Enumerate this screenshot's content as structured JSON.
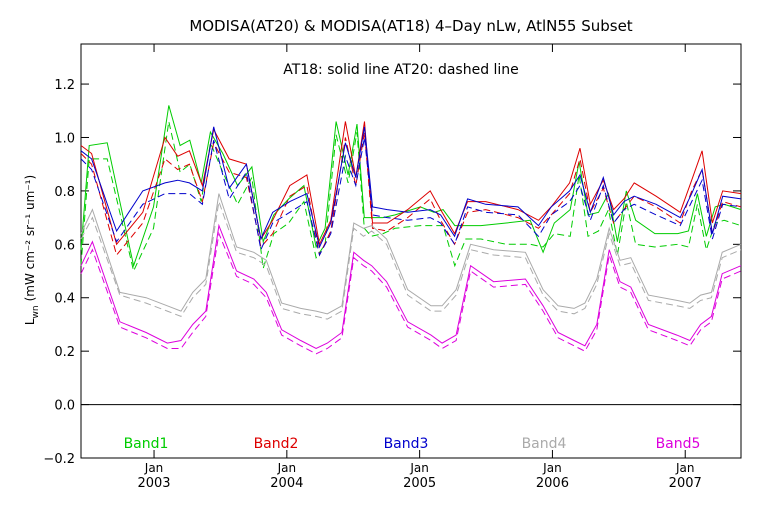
{
  "chart_data": {
    "type": "line",
    "title": "MODISA(AT20) & MODISA(AT18) 4–Day nLw, AtlN55 Subset",
    "annotation": "AT18: solid line    AT20: dashed line",
    "ylabel_main": "L",
    "ylabel_sub": "wn",
    "ylabel_unit": "(mW cm⁻² sr⁻¹ um⁻¹)",
    "ylim": [
      -0.2,
      1.35
    ],
    "xlim": [
      2002.45,
      2007.42
    ],
    "y_ticks": [
      -0.2,
      0.0,
      0.2,
      0.4,
      0.6,
      0.8,
      1.0,
      1.2
    ],
    "y_tick_labels": [
      "−0.2",
      "0.0",
      "0.2",
      "0.4",
      "0.6",
      "0.8",
      "1.0",
      "1.2"
    ],
    "x_ticks": [
      {
        "pos": 2003.0,
        "month": "Jan",
        "year": "2003"
      },
      {
        "pos": 2004.0,
        "month": "Jan",
        "year": "2004"
      },
      {
        "pos": 2005.0,
        "month": "Jan",
        "year": "2005"
      },
      {
        "pos": 2006.0,
        "month": "Jan",
        "year": "2006"
      },
      {
        "pos": 2007.0,
        "month": "Jan",
        "year": "2007"
      }
    ],
    "zero_line": 0.0,
    "x": [
      2002.45,
      2002.5,
      2002.6,
      2002.8,
      2002.93,
      2003.07,
      2003.14,
      2003.22,
      2003.28,
      2003.36,
      2003.42,
      2003.5,
      2003.6,
      2003.7,
      2003.79,
      2003.85,
      2003.93,
      2004.04,
      2004.14,
      2004.22,
      2004.28,
      2004.35,
      2004.44,
      2004.5,
      2004.56,
      2004.6,
      2004.65,
      2004.74,
      2004.82,
      2005.0,
      2005.1,
      2005.15,
      2005.24,
      2005.3,
      2005.39,
      2005.5,
      2005.7,
      2005.85,
      2005.93,
      2006.0,
      2006.12,
      2006.18,
      2006.24,
      2006.3,
      2006.38,
      2006.44,
      2006.5,
      2006.56,
      2006.62,
      2006.74,
      2006.92,
      2007.0,
      2007.06,
      2007.12,
      2007.18,
      2007.24,
      2007.3,
      2007.42
    ],
    "series": [
      {
        "name": "Band1",
        "color": "#00cc00",
        "solid": [
          0.58,
          0.97,
          0.98,
          0.52,
          0.74,
          1.12,
          0.97,
          0.99,
          0.83,
          1.02,
          0.94,
          0.82,
          0.89,
          0.61,
          0.71,
          0.77,
          0.82,
          0.59,
          0.66,
          1.06,
          0.86,
          1.05,
          0.7,
          0.7,
          0.7,
          0.71,
          0.74,
          0.72,
          0.73,
          0.67,
          0.67,
          0.67,
          0.68,
          0.69,
          0.57,
          0.68,
          0.73,
          0.91,
          0.71,
          0.72,
          0.79,
          0.61,
          0.8,
          0.69,
          0.64,
          0.64,
          0.65,
          0.79,
          0.63,
          0.74,
          0.75,
          0.73
        ],
        "dashed": [
          0.52,
          0.92,
          0.92,
          0.5,
          0.66,
          1.06,
          0.87,
          0.9,
          0.76,
          0.98,
          0.87,
          0.75,
          0.85,
          0.51,
          0.64,
          0.68,
          0.76,
          0.55,
          0.6,
          1.01,
          0.83,
          1.02,
          0.66,
          0.63,
          0.64,
          0.66,
          0.67,
          0.67,
          0.67,
          0.52,
          0.62,
          0.62,
          0.6,
          0.6,
          0.59,
          0.64,
          0.63,
          0.86,
          0.63,
          0.65,
          0.73,
          0.56,
          0.76,
          0.6,
          0.59,
          0.6,
          0.59,
          0.75,
          0.58,
          0.68,
          0.69,
          0.67
        ]
      },
      {
        "name": "Band2",
        "color": "#dd0000",
        "solid": [
          0.97,
          0.94,
          0.6,
          0.72,
          1.0,
          0.93,
          0.95,
          0.82,
          1.03,
          0.92,
          0.9,
          0.62,
          0.69,
          0.82,
          0.86,
          0.6,
          0.69,
          1.06,
          0.85,
          1.06,
          0.68,
          0.68,
          0.73,
          0.8,
          0.73,
          0.64,
          0.76,
          0.76,
          0.73,
          0.69,
          0.74,
          0.83,
          0.96,
          0.75,
          0.84,
          0.73,
          0.77,
          0.83,
          0.78,
          0.72,
          0.84,
          0.95,
          0.68,
          0.8,
          0.79
        ],
        "dashed": [
          0.94,
          0.9,
          0.56,
          0.68,
          0.92,
          0.88,
          0.9,
          0.76,
          0.98,
          0.87,
          0.85,
          0.59,
          0.64,
          0.78,
          0.82,
          0.56,
          0.65,
          1.0,
          0.82,
          1.02,
          0.66,
          0.65,
          0.7,
          0.77,
          0.69,
          0.6,
          0.72,
          0.73,
          0.7,
          0.66,
          0.71,
          0.79,
          0.92,
          0.72,
          0.81,
          0.68,
          0.73,
          0.78,
          0.74,
          0.68,
          0.8,
          0.88,
          0.64,
          0.76,
          0.74
        ]
      },
      {
        "name": "Band3",
        "color": "#0000cc",
        "solid": [
          0.95,
          0.92,
          0.65,
          0.8,
          0.83,
          0.84,
          0.83,
          0.8,
          1.04,
          0.81,
          0.9,
          0.62,
          0.72,
          0.76,
          0.79,
          0.59,
          0.68,
          0.98,
          0.85,
          1.04,
          0.74,
          0.73,
          0.72,
          0.73,
          0.71,
          0.63,
          0.77,
          0.75,
          0.74,
          0.67,
          0.74,
          0.8,
          0.86,
          0.72,
          0.85,
          0.71,
          0.76,
          0.78,
          0.75,
          0.7,
          0.79,
          0.88,
          0.64,
          0.78,
          0.77
        ],
        "dashed": [
          0.92,
          0.88,
          0.61,
          0.75,
          0.79,
          0.79,
          0.79,
          0.75,
          0.99,
          0.77,
          0.87,
          0.58,
          0.68,
          0.72,
          0.76,
          0.56,
          0.64,
          0.93,
          0.82,
          1.0,
          0.71,
          0.7,
          0.69,
          0.7,
          0.68,
          0.6,
          0.74,
          0.72,
          0.71,
          0.63,
          0.71,
          0.76,
          0.82,
          0.69,
          0.82,
          0.68,
          0.73,
          0.75,
          0.71,
          0.67,
          0.76,
          0.84,
          0.62,
          0.75,
          0.74
        ]
      },
      {
        "name": "Band4",
        "color": "#aaaaaa",
        "solid": [
          0.64,
          0.73,
          0.42,
          0.4,
          0.37,
          0.35,
          0.42,
          0.47,
          0.79,
          0.59,
          0.57,
          0.54,
          0.38,
          0.36,
          0.35,
          0.34,
          0.37,
          0.68,
          0.66,
          0.67,
          0.62,
          0.43,
          0.37,
          0.37,
          0.43,
          0.6,
          0.58,
          0.57,
          0.43,
          0.37,
          0.36,
          0.38,
          0.47,
          0.66,
          0.54,
          0.55,
          0.41,
          0.39,
          0.38,
          0.41,
          0.42,
          0.57,
          0.6
        ],
        "dashed": [
          0.62,
          0.7,
          0.41,
          0.38,
          0.35,
          0.33,
          0.4,
          0.45,
          0.76,
          0.57,
          0.55,
          0.52,
          0.36,
          0.34,
          0.33,
          0.32,
          0.35,
          0.66,
          0.63,
          0.65,
          0.6,
          0.41,
          0.35,
          0.35,
          0.41,
          0.58,
          0.56,
          0.55,
          0.41,
          0.35,
          0.34,
          0.36,
          0.45,
          0.64,
          0.52,
          0.53,
          0.39,
          0.37,
          0.36,
          0.39,
          0.4,
          0.55,
          0.58
        ]
      },
      {
        "name": "Band5",
        "color": "#dd00dd",
        "solid": [
          0.52,
          0.61,
          0.31,
          0.27,
          0.23,
          0.24,
          0.3,
          0.35,
          0.67,
          0.5,
          0.47,
          0.42,
          0.28,
          0.24,
          0.21,
          0.23,
          0.27,
          0.57,
          0.54,
          0.52,
          0.46,
          0.31,
          0.26,
          0.23,
          0.26,
          0.52,
          0.46,
          0.47,
          0.37,
          0.27,
          0.24,
          0.22,
          0.3,
          0.58,
          0.46,
          0.44,
          0.3,
          0.26,
          0.24,
          0.3,
          0.33,
          0.49,
          0.52
        ],
        "dashed": [
          0.49,
          0.58,
          0.29,
          0.25,
          0.21,
          0.21,
          0.27,
          0.33,
          0.64,
          0.48,
          0.45,
          0.4,
          0.26,
          0.22,
          0.19,
          0.21,
          0.25,
          0.55,
          0.52,
          0.5,
          0.44,
          0.29,
          0.24,
          0.21,
          0.24,
          0.5,
          0.44,
          0.45,
          0.35,
          0.25,
          0.22,
          0.2,
          0.28,
          0.56,
          0.44,
          0.42,
          0.28,
          0.24,
          0.22,
          0.28,
          0.31,
          0.47,
          0.5
        ]
      }
    ],
    "legend_placement": "bottom",
    "grid": false
  }
}
